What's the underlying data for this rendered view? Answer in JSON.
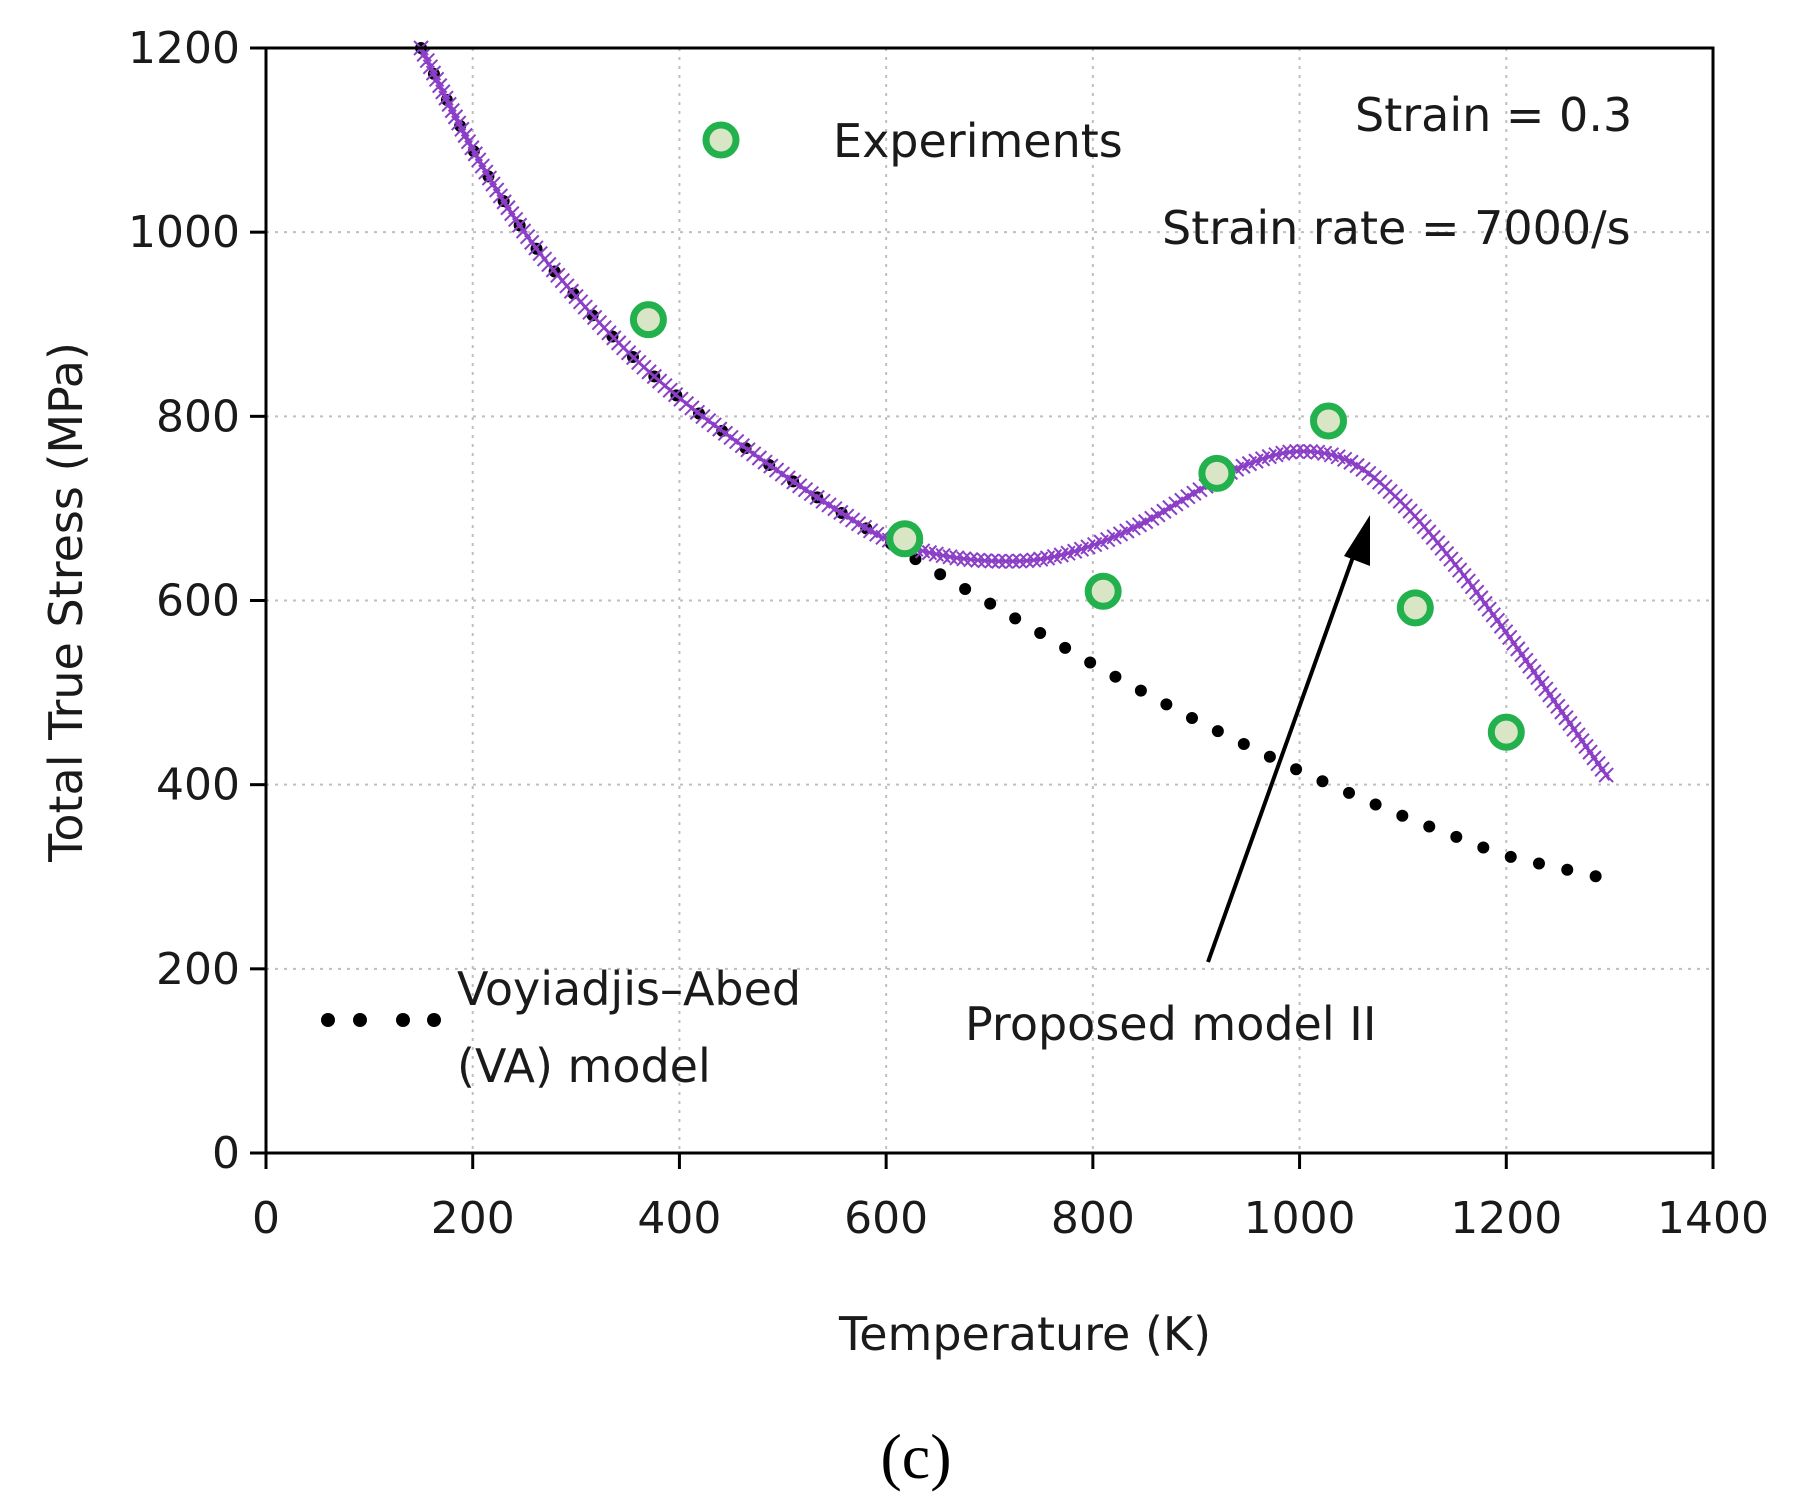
{
  "chart_data": {
    "type": "line",
    "xlabel": "Temperature (K)",
    "ylabel": "Total True Stress (MPa)",
    "xlim": [
      0,
      1400
    ],
    "ylim": [
      0,
      1200
    ],
    "xticks": [
      0,
      200,
      400,
      600,
      800,
      1000,
      1200,
      1400
    ],
    "yticks": [
      0,
      200,
      400,
      600,
      800,
      1000,
      1200
    ],
    "grid": true,
    "panel_label": "(c)",
    "annotations": {
      "strain": "Strain = 0.3",
      "strain_rate": "Strain rate = 7000/s",
      "proposed_model": "Proposed model II",
      "va_model_line1": "Voyiadjis–Abed",
      "va_model_line2": "(VA) model"
    },
    "legend": {
      "experiments": "Experiments"
    },
    "series": [
      {
        "name": "Experiments",
        "style": "circle-marker",
        "color": "#22b14c",
        "fill": "#d9e6c6",
        "x": [
          370,
          618,
          810,
          920,
          1028,
          1112,
          1200
        ],
        "y": [
          905,
          667,
          610,
          738,
          795,
          592,
          457
        ]
      },
      {
        "name": "Voyiadjis–Abed (VA) model",
        "style": "dotted",
        "color": "#000000",
        "x": [
          150,
          200,
          250,
          300,
          350,
          400,
          450,
          500,
          550,
          600,
          650,
          700,
          750,
          800,
          850,
          900,
          950,
          1000,
          1050,
          1100,
          1150,
          1200,
          1250,
          1300
        ],
        "y": [
          1200,
          1090,
          1000,
          930,
          870,
          820,
          777,
          737,
          700,
          665,
          630,
          597,
          564,
          531,
          500,
          470,
          442,
          415,
          390,
          366,
          344,
          323,
          310,
          297
        ]
      },
      {
        "name": "Proposed model II",
        "style": "cross-line",
        "color": "#8b3fc6",
        "x": [
          150,
          200,
          250,
          300,
          350,
          400,
          450,
          500,
          550,
          600,
          650,
          700,
          750,
          800,
          850,
          900,
          950,
          1000,
          1050,
          1100,
          1150,
          1200,
          1250,
          1300
        ],
        "y": [
          1200,
          1090,
          1000,
          930,
          870,
          820,
          777,
          737,
          700,
          667,
          650,
          643,
          645,
          660,
          685,
          718,
          748,
          762,
          750,
          705,
          640,
          565,
          485,
          405
        ]
      }
    ]
  }
}
